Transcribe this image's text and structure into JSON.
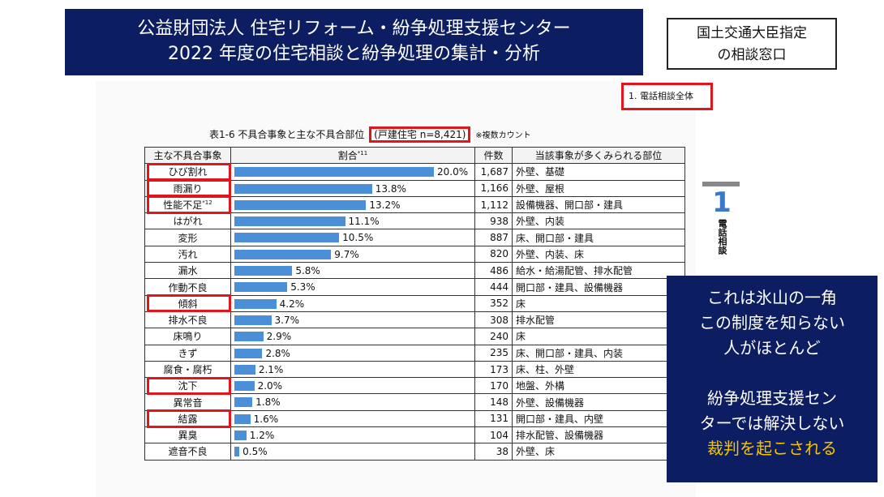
{
  "header": {
    "title_line1": "公益財団法人 住宅リフォーム・紛争処理支援センター",
    "title_line2": "2022 年度の住宅相談と紛争処理の集計・分析"
  },
  "designation": {
    "line1": "国土交通大臣指定",
    "line2": "の相談窓口"
  },
  "section_label": "1.  電話相談全体",
  "table_caption": {
    "prefix": "表1-6   不具合事象と主な不具合部位",
    "highlight": "(戸建住宅 n=8,421)",
    "note": "※複数カウント"
  },
  "side_tab": {
    "number": "1",
    "label": "電話相談"
  },
  "message": {
    "line1": "これは氷山の一角",
    "line2": "この制度を知らない",
    "line3": "人がほとんど",
    "line4": "紛争処理支援セン",
    "line5": "ターでは解決しない",
    "line6": "裁判を起こされる"
  },
  "highlight_color": "#e0161c",
  "bar_color": "#4a8fd8",
  "chart_data": {
    "type": "table",
    "columns": [
      "主な不具合事象",
      "割合",
      "件数",
      "当該事象が多くみられる部位"
    ],
    "ratio_superscript": "*11",
    "xlim": [
      0,
      25
    ],
    "rows": [
      {
        "label": "ひび割れ",
        "pct": 20.0,
        "pct_text": "20.0%",
        "count": "1,687",
        "parts": "外壁、基礎",
        "highlight": true
      },
      {
        "label": "雨漏り",
        "pct": 13.8,
        "pct_text": "13.8%",
        "count": "1,166",
        "parts": "外壁、屋根",
        "highlight": true
      },
      {
        "label": "性能不足",
        "sup": "*12",
        "pct": 13.2,
        "pct_text": "13.2%",
        "count": "1,112",
        "parts": "設備機器、開口部・建具",
        "highlight": true
      },
      {
        "label": "はがれ",
        "pct": 11.1,
        "pct_text": "11.1%",
        "count": "938",
        "parts": "外壁、内装",
        "highlight": false
      },
      {
        "label": "変形",
        "pct": 10.5,
        "pct_text": "10.5%",
        "count": "887",
        "parts": "床、開口部・建具",
        "highlight": false
      },
      {
        "label": "汚れ",
        "pct": 9.7,
        "pct_text": "9.7%",
        "count": "820",
        "parts": "外壁、内装、床",
        "highlight": false
      },
      {
        "label": "漏水",
        "pct": 5.8,
        "pct_text": "5.8%",
        "count": "486",
        "parts": "給水・給湯配管、排水配管",
        "highlight": false
      },
      {
        "label": "作動不良",
        "pct": 5.3,
        "pct_text": "5.3%",
        "count": "444",
        "parts": "開口部・建具、設備機器",
        "highlight": false
      },
      {
        "label": "傾斜",
        "pct": 4.2,
        "pct_text": "4.2%",
        "count": "352",
        "parts": "床",
        "highlight": true
      },
      {
        "label": "排水不良",
        "pct": 3.7,
        "pct_text": "3.7%",
        "count": "308",
        "parts": "排水配管",
        "highlight": false
      },
      {
        "label": "床鳴り",
        "pct": 2.9,
        "pct_text": "2.9%",
        "count": "240",
        "parts": "床",
        "highlight": false
      },
      {
        "label": "きず",
        "pct": 2.8,
        "pct_text": "2.8%",
        "count": "235",
        "parts": "床、開口部・建具、内装",
        "highlight": false
      },
      {
        "label": "腐食・腐朽",
        "pct": 2.1,
        "pct_text": "2.1%",
        "count": "173",
        "parts": "床、柱、外壁",
        "highlight": false
      },
      {
        "label": "沈下",
        "pct": 2.0,
        "pct_text": "2.0%",
        "count": "170",
        "parts": "地盤、外構",
        "highlight": true
      },
      {
        "label": "異常音",
        "pct": 1.8,
        "pct_text": "1.8%",
        "count": "148",
        "parts": "外壁、設備機器",
        "highlight": false
      },
      {
        "label": "結露",
        "pct": 1.6,
        "pct_text": "1.6%",
        "count": "131",
        "parts": "開口部・建具、内壁",
        "highlight": true
      },
      {
        "label": "異臭",
        "pct": 1.2,
        "pct_text": "1.2%",
        "count": "104",
        "parts": "排水配管、設備機器",
        "highlight": false
      },
      {
        "label": "遮音不良",
        "pct": 0.5,
        "pct_text": "0.5%",
        "count": "38",
        "parts": "外壁、床",
        "highlight": false
      }
    ]
  }
}
